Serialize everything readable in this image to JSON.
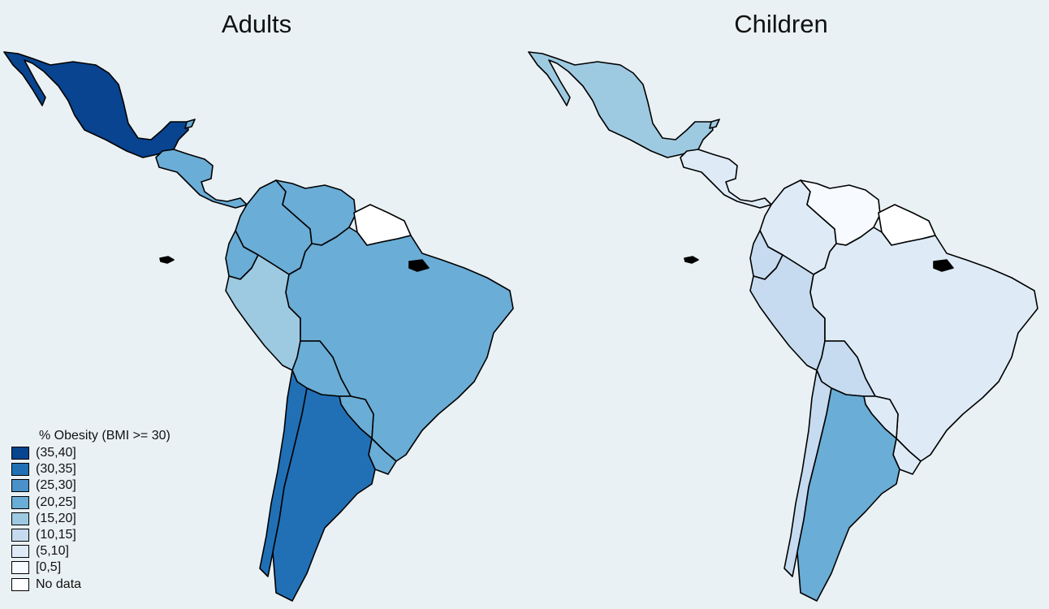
{
  "titles": {
    "adults": "Adults",
    "children": "Children"
  },
  "legend": {
    "title": "% Obesity (BMI >= 30)",
    "items": [
      {
        "label": "(35,40]",
        "color": "#08448f"
      },
      {
        "label": "(30,35]",
        "color": "#2170b6"
      },
      {
        "label": "(25,30]",
        "color": "#4a91c9"
      },
      {
        "label": "(20,25]",
        "color": "#6aadd6"
      },
      {
        "label": "(15,20]",
        "color": "#9ecae1"
      },
      {
        "label": "(10,15]",
        "color": "#c6dbef"
      },
      {
        "label": "(5,10]",
        "color": "#deebf7"
      },
      {
        "label": "[0,5]",
        "color": "#f7fbff"
      },
      {
        "label": "No data",
        "color": "#ffffff"
      }
    ]
  },
  "map_data": {
    "adults": {
      "Mexico": "(35,40]",
      "Central America": "(20,25]",
      "Cuba": "(20,25]",
      "Colombia": "(20,25]",
      "Venezuela": "(20,25]",
      "Guianas": "No data",
      "Ecuador": "(20,25]",
      "Peru": "(15,20]",
      "Brazil": "(20,25]",
      "Bolivia": "(20,25]",
      "Paraguay": "(20,25]",
      "Uruguay": "(20,25]",
      "Chile": "(30,35]",
      "Argentina": "(30,35]"
    },
    "children": {
      "Mexico": "(15,20]",
      "Central America": "(5,10]",
      "Cuba": "(15,20]",
      "Colombia": "(5,10]",
      "Venezuela": "[0,5]",
      "Guianas": "No data",
      "Ecuador": "(10,15]",
      "Peru": "(10,15]",
      "Brazil": "(5,10]",
      "Bolivia": "(10,15]",
      "Paraguay": "(5,10]",
      "Uruguay": "(5,10]",
      "Chile": "(10,15]",
      "Argentina": "(20,25]"
    }
  }
}
